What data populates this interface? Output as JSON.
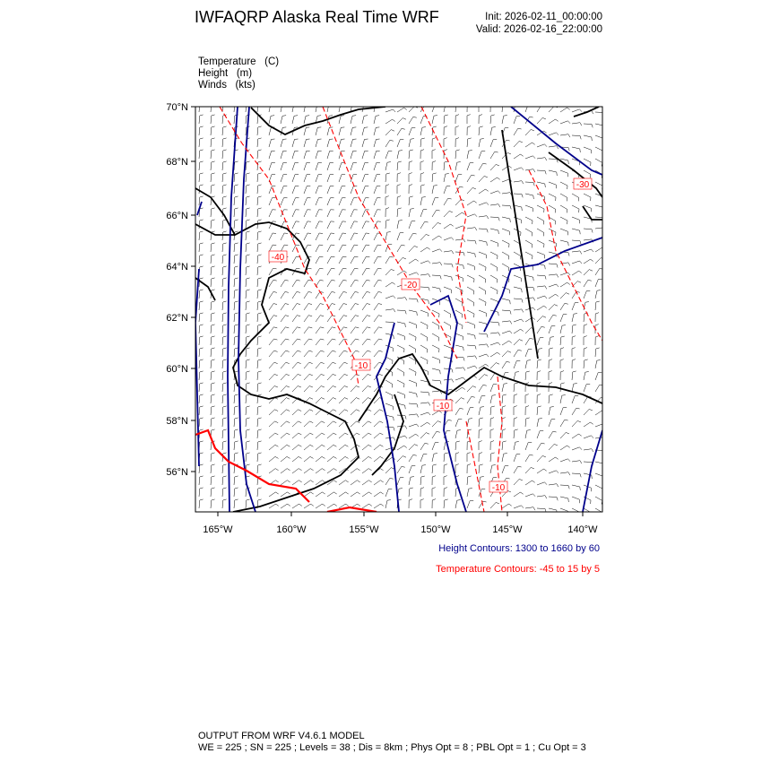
{
  "header": {
    "title": "IWFAQRP Alaska Real Time WRF",
    "init": "Init: 2026-02-11_00:00:00",
    "valid": "Valid: 2026-02-16_22:00:00"
  },
  "fields": [
    "Temperature   (C)",
    "Height   (m)",
    "Winds   (kts)"
  ],
  "map": {
    "lat_ticks": [
      "70°N",
      "68°N",
      "66°N",
      "64°N",
      "62°N",
      "60°N",
      "58°N",
      "56°N"
    ],
    "lon_ticks": [
      "165°W",
      "160°W",
      "155°W",
      "150°W",
      "145°W",
      "140°W"
    ],
    "temperature_labels": [
      "-40",
      "-20",
      "-30",
      "-10",
      "-10",
      "-10"
    ],
    "colors": {
      "height": "#00008b",
      "temperature": "#ff0000",
      "coast": "#000000",
      "barbs": "#000000"
    }
  },
  "legend": {
    "height": "Height Contours: 1300 to 1660 by 60",
    "temperature": "Temperature Contours: -45 to 15 by 5"
  },
  "footer": {
    "line1": "OUTPUT FROM WRF V4.6.1 MODEL",
    "line2": "WE = 225 ; SN = 225 ; Levels = 38 ; Dis = 8km ; Phys Opt = 8 ; PBL Opt = 1 ; Cu Opt = 3"
  }
}
